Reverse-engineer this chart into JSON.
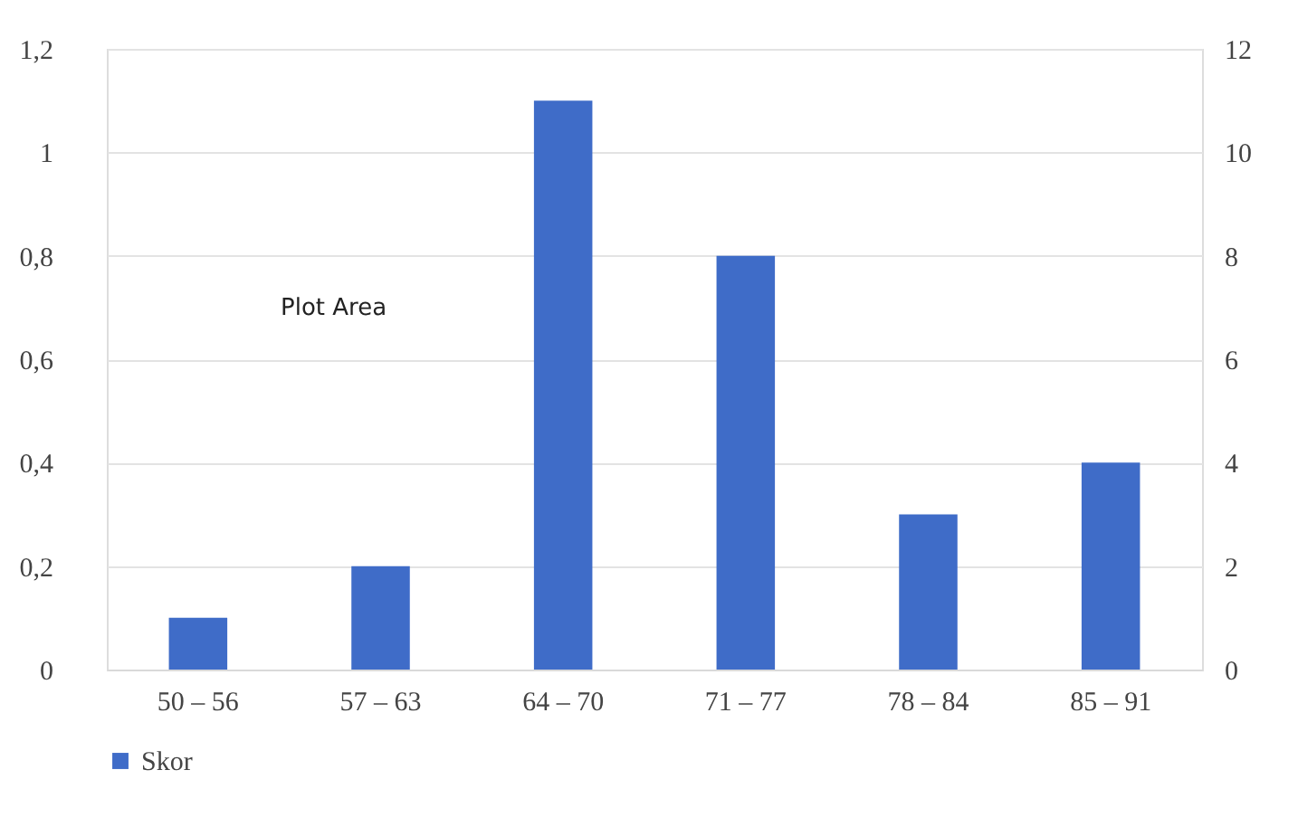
{
  "chart_data": {
    "type": "bar",
    "categories": [
      "50 – 56",
      "57 – 63",
      "64 – 70",
      "71 – 77",
      "78 – 84",
      "85 – 91"
    ],
    "series": [
      {
        "name": "Skor",
        "color": "#3f6cc8",
        "axis": "y2",
        "values": [
          1,
          2,
          11,
          8,
          3,
          4
        ]
      }
    ],
    "ylim": [
      0,
      1.2
    ],
    "yticks": [
      0,
      {
        "value": 0.2,
        "label": "0,2"
      },
      {
        "value": 0.4,
        "label": "0,4"
      },
      {
        "value": 0.6,
        "label": "0,6"
      },
      {
        "value": 0.8,
        "label": "0,8"
      },
      1,
      {
        "value": 1.2,
        "label": "1,2"
      }
    ],
    "y2lim": [
      0,
      12
    ],
    "y2ticks": [
      0,
      2,
      4,
      6,
      8,
      10,
      12
    ],
    "grid": "y",
    "legend": "bottom",
    "annotations": [
      "Plot Area"
    ]
  }
}
